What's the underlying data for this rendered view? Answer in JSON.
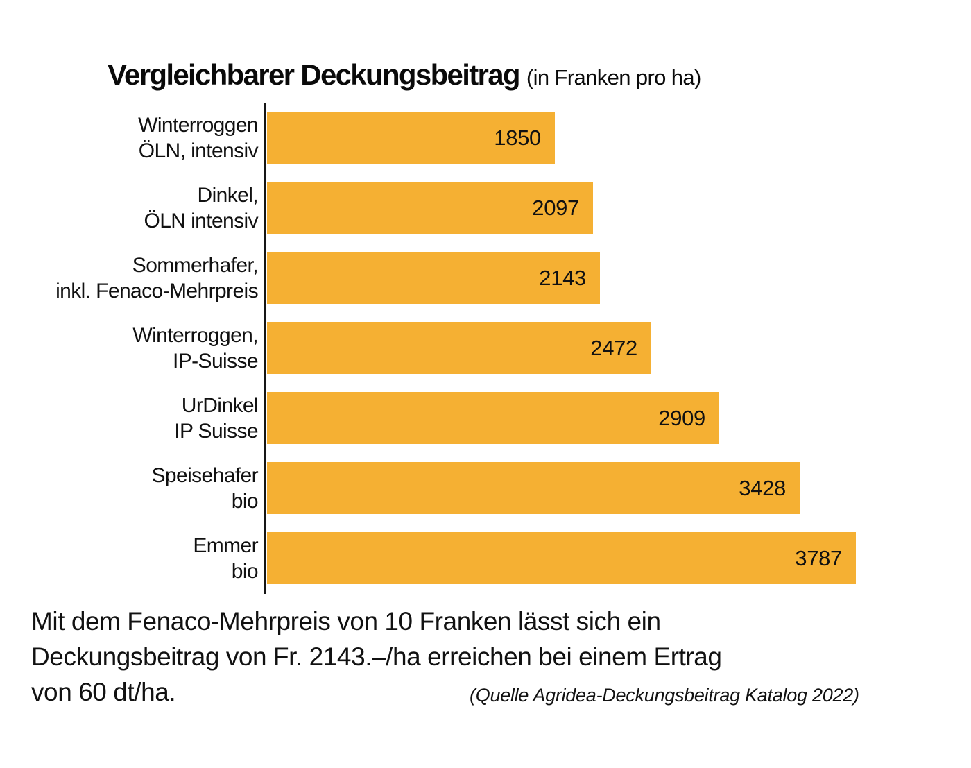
{
  "title": {
    "main": "Vergleichbarer Deckungsbeitrag",
    "unit": "(in Franken pro ha)"
  },
  "chart_data": {
    "type": "bar",
    "orientation": "horizontal",
    "title": "Vergleichbarer Deckungsbeitrag",
    "subtitle": "(in Franken pro ha)",
    "categories": [
      [
        "Winterroggen",
        "ÖLN, intensiv"
      ],
      [
        "Dinkel,",
        "ÖLN intensiv"
      ],
      [
        "Sommerhafer,",
        "inkl. Fenaco-Mehrpreis"
      ],
      [
        "Winterroggen,",
        "IP-Suisse"
      ],
      [
        "UrDinkel",
        "IP Suisse"
      ],
      [
        "Speisehafer",
        "bio"
      ],
      [
        "Emmer",
        "bio"
      ]
    ],
    "values": [
      1850,
      2097,
      2143,
      2472,
      2909,
      3428,
      3787
    ],
    "xlabel": "",
    "ylabel": "",
    "xlim": [
      0,
      4200
    ],
    "grid": false,
    "legend": false,
    "value_label_position": "inside-right",
    "bar_color": "#F5B033",
    "text_color": "#111111"
  },
  "footnote": {
    "lines": [
      "Mit dem Fenaco-Mehrpreis von 10 Franken lässt sich ein",
      "Deckungsbeitrag von Fr. 2143.–/ha erreichen bei einem Ertrag",
      "von 60 dt/ha."
    ],
    "source": "(Quelle Agridea-Deckungsbeitrag Katalog 2022)"
  }
}
